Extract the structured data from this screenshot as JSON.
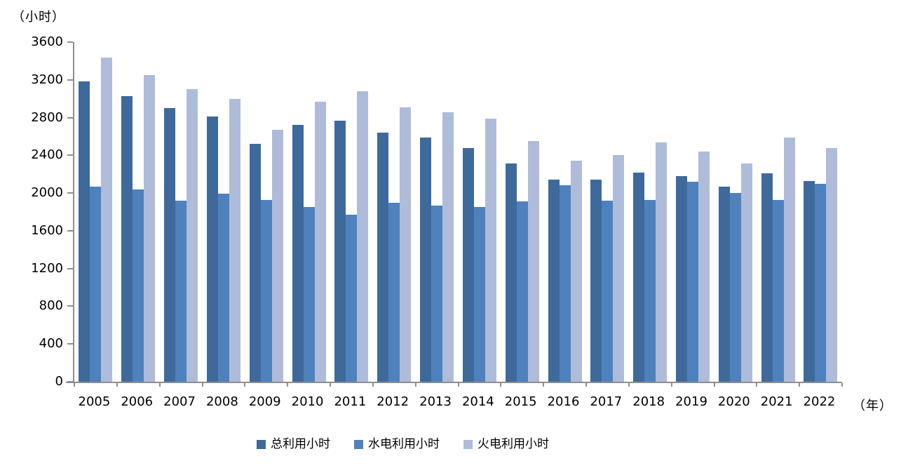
{
  "chart_data": {
    "type": "bar",
    "title": "",
    "y_axis_unit_label": "（小时）",
    "x_axis_unit_label": "（年）",
    "categories": [
      "2005",
      "2006",
      "2007",
      "2008",
      "2009",
      "2010",
      "2011",
      "2012",
      "2013",
      "2014",
      "2015",
      "2016",
      "2017",
      "2018",
      "2019",
      "2020",
      "2021",
      "2022"
    ],
    "series": [
      {
        "name": "总利用小时",
        "color": "#3e6a9b",
        "values": [
          3180,
          3030,
          2900,
          2810,
          2520,
          2720,
          2770,
          2640,
          2590,
          2480,
          2310,
          2140,
          2140,
          2220,
          2180,
          2070,
          2210,
          2130
        ]
      },
      {
        "name": "水电利用小时",
        "color": "#4f81bd",
        "values": [
          2070,
          2040,
          1920,
          1990,
          1930,
          1850,
          1770,
          1900,
          1870,
          1850,
          1910,
          2080,
          1920,
          1930,
          2120,
          2000,
          1930,
          2100
        ]
      },
      {
        "name": "火电利用小时",
        "color": "#aebcda",
        "values": [
          3440,
          3250,
          3100,
          3000,
          2670,
          2970,
          3080,
          2910,
          2860,
          2790,
          2550,
          2340,
          2400,
          2540,
          2440,
          2310,
          2590,
          2480
        ]
      }
    ],
    "ylim": [
      0,
      3600
    ],
    "y_ticks": [
      0,
      400,
      800,
      1200,
      1600,
      2000,
      2400,
      2800,
      3200,
      3600
    ],
    "grid": false,
    "legend_position": "bottom",
    "axis_color": "#8e8e8e"
  }
}
